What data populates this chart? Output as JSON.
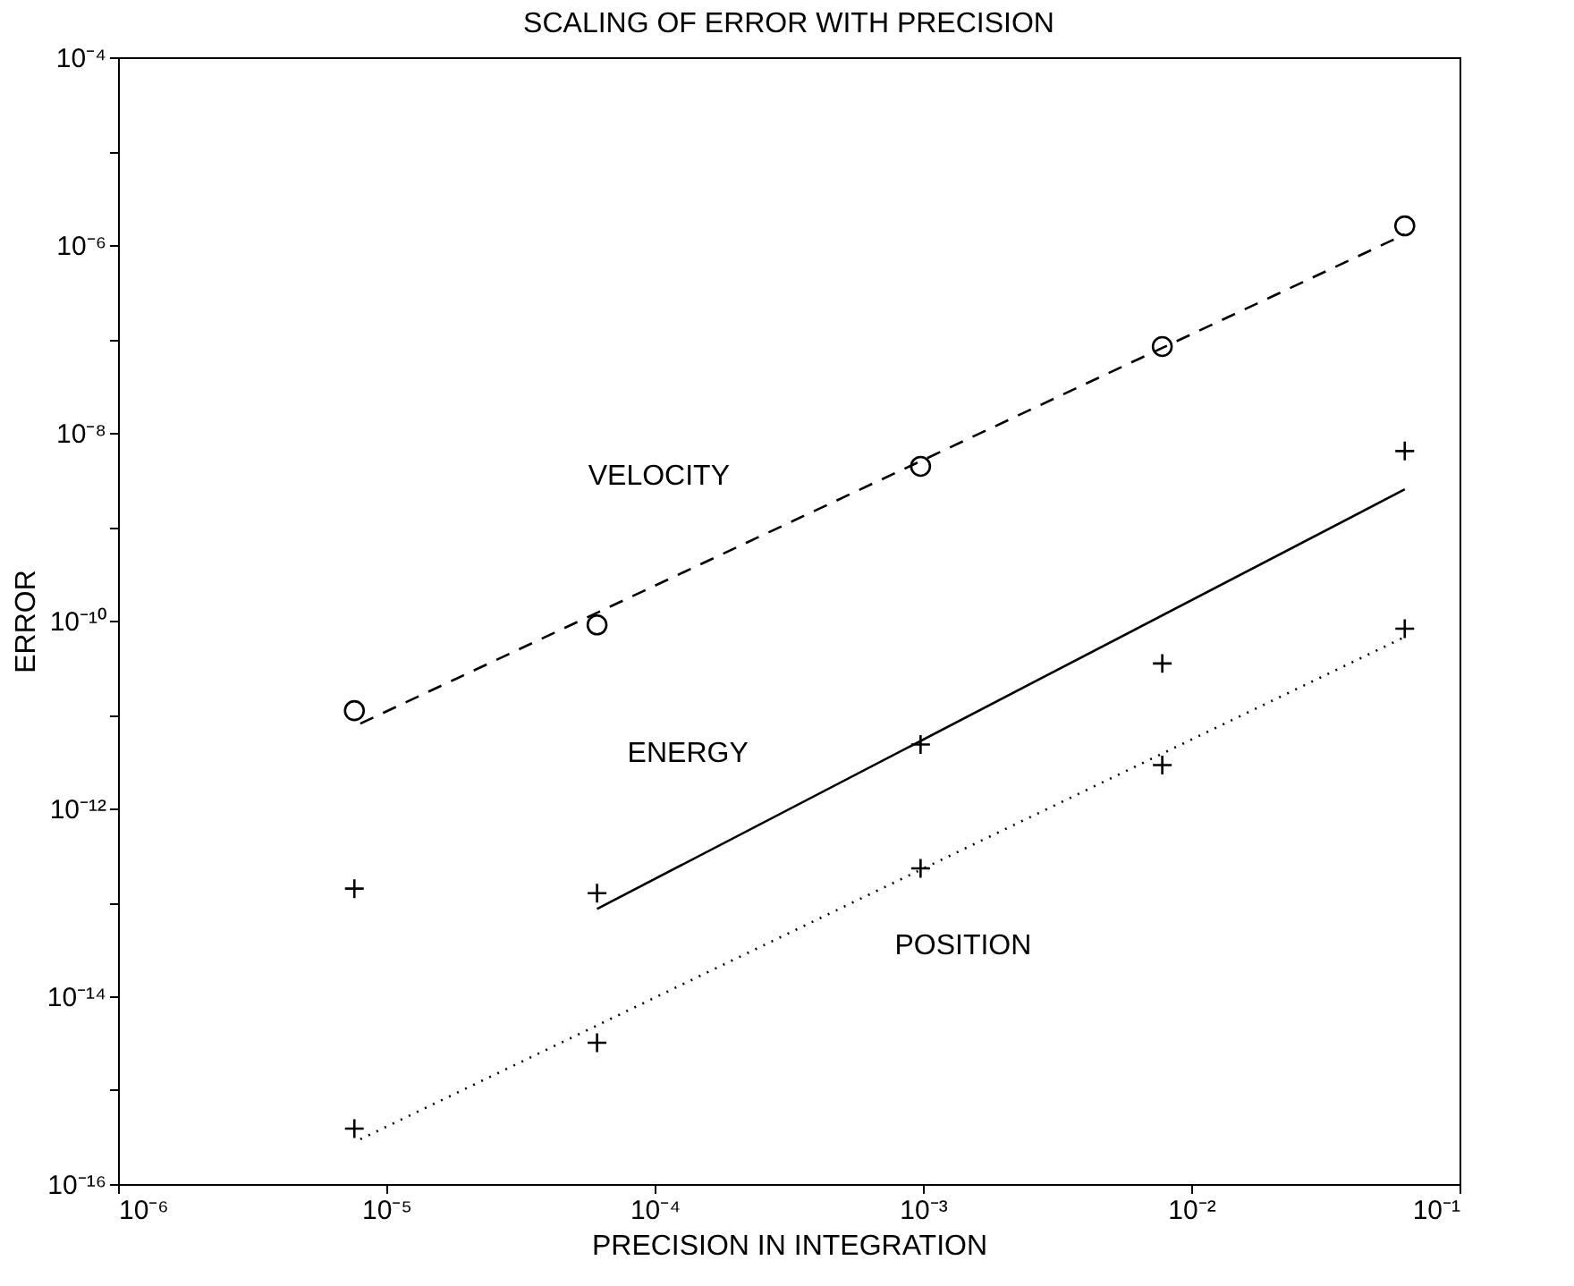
{
  "chart_data": {
    "type": "scatter",
    "title": "SCALING OF ERROR WITH PRECISION",
    "xlabel": "PRECISION IN INTEGRATION",
    "ylabel": "ERROR",
    "log": "xy",
    "grid": false,
    "xlim": [
      1e-06,
      0.1
    ],
    "ylim": [
      1e-16,
      0.0001
    ],
    "xticks": [
      {
        "value": 1e-06,
        "label": "10⁻⁶"
      },
      {
        "value": 1e-05,
        "label": "10⁻⁵"
      },
      {
        "value": 0.0001,
        "label": "10⁻⁴"
      },
      {
        "value": 0.001,
        "label": "10⁻³"
      },
      {
        "value": 0.01,
        "label": "10⁻²"
      },
      {
        "value": 0.1,
        "label": "10⁻¹"
      }
    ],
    "yticks": [
      {
        "value": 1e-16,
        "label": "10⁻¹⁶"
      },
      {
        "value": 1e-15,
        "label": null
      },
      {
        "value": 1e-14,
        "label": "10⁻¹⁴"
      },
      {
        "value": 1e-13,
        "label": null
      },
      {
        "value": 1e-12,
        "label": "10⁻¹²"
      },
      {
        "value": 1e-11,
        "label": null
      },
      {
        "value": 1e-10,
        "label": "10⁻¹⁰"
      },
      {
        "value": 1e-09,
        "label": null
      },
      {
        "value": 1e-08,
        "label": "10⁻⁸"
      },
      {
        "value": 1e-07,
        "label": null
      },
      {
        "value": 1e-06,
        "label": "10⁻⁶"
      },
      {
        "value": 1e-05,
        "label": null
      },
      {
        "value": 0.0001,
        "label": "10⁻⁴"
      }
    ],
    "series": [
      {
        "marker": "circle",
        "color": "#000000",
        "x": [
          7.6e-06,
          6.1e-05,
          0.00098,
          0.0078,
          0.0625
        ],
        "values": [
          1.1e-11,
          9e-11,
          4.4e-09,
          8.3e-08,
          1.6e-06
        ]
      },
      {
        "type": "line",
        "name": "VELOCITY",
        "line_style": "dashed",
        "color": "#000000",
        "x": [
          8e-06,
          0.0625
        ],
        "values": [
          8e-12,
          1.3e-06
        ]
      },
      {
        "marker": "cross",
        "color": "#000000",
        "x": [
          7.6e-06,
          6.1e-05,
          0.00098,
          0.0078,
          0.0625
        ],
        "values": [
          1.4e-13,
          1.25e-13,
          4.8e-12,
          3.5e-11,
          6.4e-09
        ]
      },
      {
        "type": "line",
        "name": "ENERGY",
        "line_style": "solid",
        "color": "#000000",
        "x": [
          6.1e-05,
          0.0625
        ],
        "values": [
          8.5e-14,
          2.5e-09
        ]
      },
      {
        "marker": "cross",
        "color": "#000000",
        "x": [
          7.6e-06,
          6.1e-05,
          0.00098,
          0.0078,
          0.0625
        ],
        "values": [
          3.9e-16,
          3.2e-15,
          2.3e-13,
          2.9e-12,
          8.2e-11
        ]
      },
      {
        "type": "line",
        "name": "POSITION",
        "line_style": "dotted",
        "color": "#000000",
        "x": [
          8e-06,
          0.0625
        ],
        "values": [
          3e-16,
          6.7e-11
        ]
      }
    ]
  }
}
